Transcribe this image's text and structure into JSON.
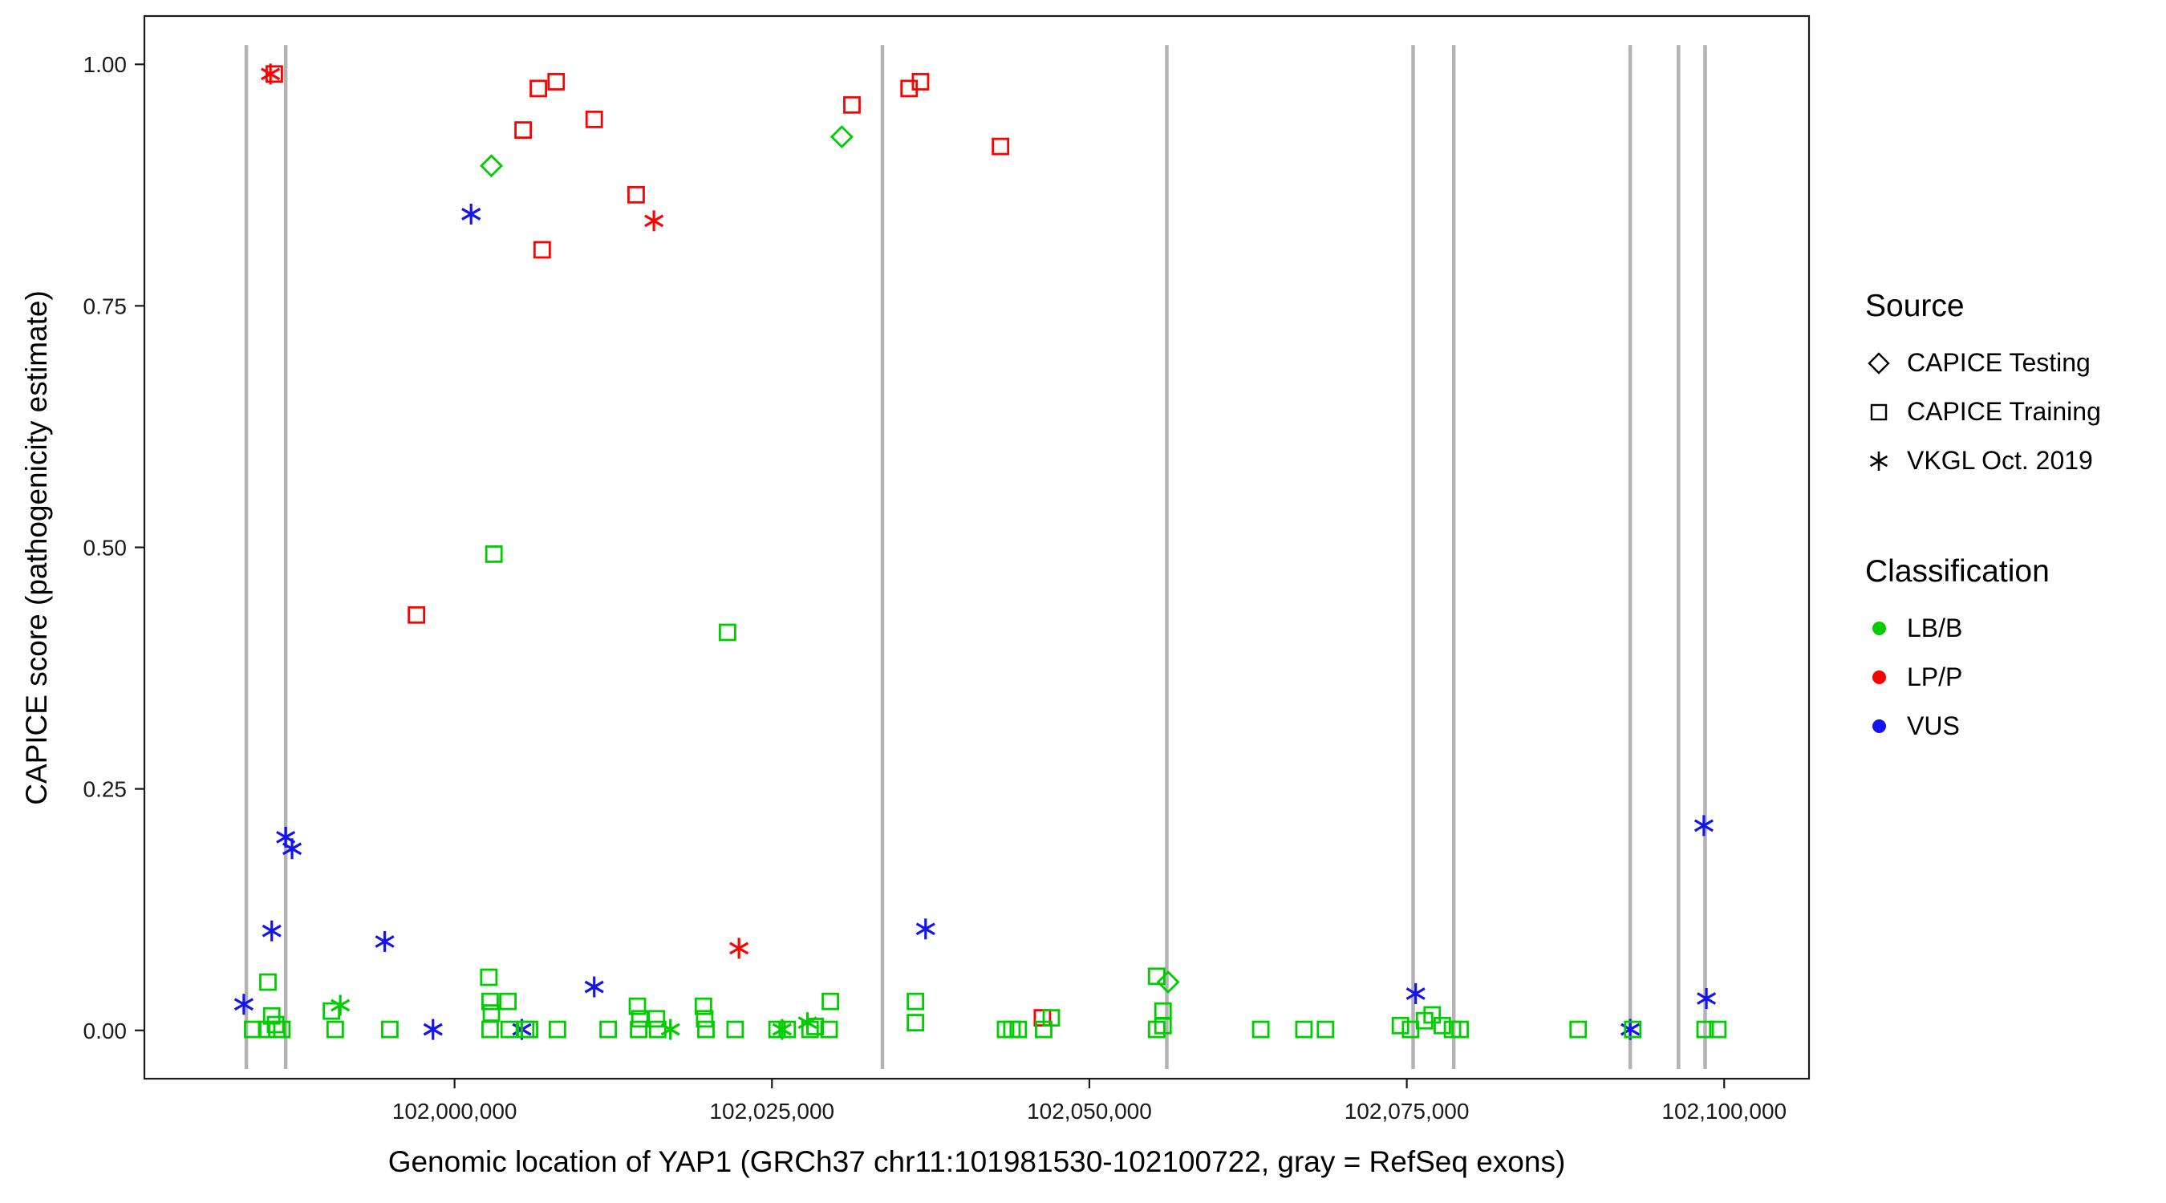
{
  "figure": {
    "y_axis_title": "CAPICE score (pathogenicity estimate)",
    "x_axis_title": "Genomic location of YAP1 (GRCh37 chr11:101981530-102100722, gray = RefSeq exons)"
  },
  "legend": {
    "source": {
      "title": "Source",
      "items": [
        {
          "label": "CAPICE Testing",
          "shape": "diamond"
        },
        {
          "label": "CAPICE Training",
          "shape": "square"
        },
        {
          "label": "VKGL Oct. 2019",
          "shape": "asterisk"
        }
      ]
    },
    "classification": {
      "title": "Classification",
      "items": [
        {
          "label": "LB/B",
          "color": "#00CD00"
        },
        {
          "label": "LP/P",
          "color": "#FF0000"
        },
        {
          "label": "VUS",
          "color": "#1414EE"
        }
      ]
    }
  },
  "chart_data": {
    "type": "scatter",
    "title": "",
    "xlabel": "Genomic location of YAP1 (GRCh37 chr11:101981530-102100722, gray = RefSeq exons)",
    "ylabel": "CAPICE score (pathogenicity estimate)",
    "xlim": [
      101975570,
      102106682
    ],
    "ylim": [
      -0.05,
      1.05
    ],
    "x_ticks": [
      {
        "value": 102000000,
        "label": "102,000,000"
      },
      {
        "value": 102025000,
        "label": "102,025,000"
      },
      {
        "value": 102050000,
        "label": "102,050,000"
      },
      {
        "value": 102075000,
        "label": "102,075,000"
      },
      {
        "value": 102100000,
        "label": "102,100,000"
      }
    ],
    "y_ticks": [
      {
        "value": 0.0,
        "label": "0.00"
      },
      {
        "value": 0.25,
        "label": "0.25"
      },
      {
        "value": 0.5,
        "label": "0.50"
      },
      {
        "value": 0.75,
        "label": "0.75"
      },
      {
        "value": 1.0,
        "label": "1.00"
      }
    ],
    "exon_lines": [
      101983600,
      101986700,
      102033700,
      102056100,
      102075500,
      102078700,
      102092600,
      102096400,
      102098500
    ],
    "colors": {
      "LB/B": "#00CD00",
      "LP/P": "#FF0000",
      "VUS": "#1414EE",
      "exon": "#B3B3B3"
    },
    "points": [
      [
        101985800,
        0.99,
        "LP/P",
        "square"
      ],
      [
        101985500,
        0.99,
        "LP/P",
        "asterisk"
      ],
      [
        101997000,
        0.43,
        "LP/P",
        "square"
      ],
      [
        102005400,
        0.932,
        "LP/P",
        "square"
      ],
      [
        102006600,
        0.975,
        "LP/P",
        "square"
      ],
      [
        102008000,
        0.982,
        "LP/P",
        "square"
      ],
      [
        102006900,
        0.808,
        "LP/P",
        "square"
      ],
      [
        102011000,
        0.943,
        "LP/P",
        "square"
      ],
      [
        102014300,
        0.865,
        "LP/P",
        "square"
      ],
      [
        102015700,
        0.838,
        "LP/P",
        "asterisk"
      ],
      [
        102022400,
        0.085,
        "LP/P",
        "asterisk"
      ],
      [
        102031300,
        0.958,
        "LP/P",
        "square"
      ],
      [
        102035800,
        0.975,
        "LP/P",
        "square"
      ],
      [
        102036700,
        0.982,
        "LP/P",
        "square"
      ],
      [
        102043000,
        0.915,
        "LP/P",
        "square"
      ],
      [
        102046300,
        0.013,
        "LP/P",
        "square"
      ],
      [
        102002900,
        0.895,
        "LB/B",
        "diamond"
      ],
      [
        102030500,
        0.925,
        "LB/B",
        "diamond"
      ],
      [
        102056200,
        0.05,
        "LB/B",
        "diamond"
      ],
      [
        102003100,
        0.493,
        "LB/B",
        "square"
      ],
      [
        102021500,
        0.412,
        "LB/B",
        "square"
      ],
      [
        102001300,
        0.845,
        "VUS",
        "asterisk"
      ],
      [
        101983400,
        0.027,
        "VUS",
        "asterisk"
      ],
      [
        101985600,
        0.103,
        "VUS",
        "asterisk"
      ],
      [
        101986700,
        0.2,
        "VUS",
        "asterisk"
      ],
      [
        101987200,
        0.188,
        "VUS",
        "asterisk"
      ],
      [
        101994500,
        0.092,
        "VUS",
        "asterisk"
      ],
      [
        101998300,
        0.001,
        "VUS",
        "asterisk"
      ],
      [
        102005300,
        0.001,
        "VUS",
        "asterisk"
      ],
      [
        102011000,
        0.045,
        "VUS",
        "asterisk"
      ],
      [
        102037100,
        0.105,
        "VUS",
        "asterisk"
      ],
      [
        102075700,
        0.038,
        "VUS",
        "asterisk"
      ],
      [
        102092600,
        0.001,
        "VUS",
        "asterisk"
      ],
      [
        102098400,
        0.212,
        "VUS",
        "asterisk"
      ],
      [
        102098600,
        0.033,
        "VUS",
        "asterisk"
      ],
      [
        101984100,
        0.001,
        "LB/B",
        "square"
      ],
      [
        101985200,
        0.001,
        "LB/B",
        "square"
      ],
      [
        101985300,
        0.05,
        "LB/B",
        "square"
      ],
      [
        101985600,
        0.015,
        "LB/B",
        "square"
      ],
      [
        101985900,
        0.006,
        "LB/B",
        "square"
      ],
      [
        101986000,
        0.001,
        "LB/B",
        "square"
      ],
      [
        101986400,
        0.001,
        "LB/B",
        "square"
      ],
      [
        101990300,
        0.02,
        "LB/B",
        "square"
      ],
      [
        101990600,
        0.001,
        "LB/B",
        "square"
      ],
      [
        101991000,
        0.026,
        "LB/B",
        "asterisk"
      ],
      [
        101994900,
        0.001,
        "LB/B",
        "square"
      ],
      [
        102002700,
        0.055,
        "LB/B",
        "square"
      ],
      [
        102002800,
        0.03,
        "LB/B",
        "square"
      ],
      [
        102002900,
        0.018,
        "LB/B",
        "square"
      ],
      [
        102002800,
        0.001,
        "LB/B",
        "square"
      ],
      [
        102004200,
        0.03,
        "LB/B",
        "square"
      ],
      [
        102004300,
        0.001,
        "LB/B",
        "square"
      ],
      [
        102005600,
        0.001,
        "LB/B",
        "square"
      ],
      [
        102005900,
        0.001,
        "LB/B",
        "square"
      ],
      [
        102008100,
        0.001,
        "LB/B",
        "square"
      ],
      [
        102012100,
        0.001,
        "LB/B",
        "square"
      ],
      [
        102014400,
        0.025,
        "LB/B",
        "square"
      ],
      [
        102014600,
        0.012,
        "LB/B",
        "square"
      ],
      [
        102014500,
        0.001,
        "LB/B",
        "square"
      ],
      [
        102015900,
        0.012,
        "LB/B",
        "square"
      ],
      [
        102016000,
        0.001,
        "LB/B",
        "square"
      ],
      [
        102017000,
        0.001,
        "LB/B",
        "asterisk"
      ],
      [
        102019600,
        0.025,
        "LB/B",
        "square"
      ],
      [
        102019700,
        0.012,
        "LB/B",
        "square"
      ],
      [
        102019800,
        0.001,
        "LB/B",
        "square"
      ],
      [
        102022100,
        0.001,
        "LB/B",
        "square"
      ],
      [
        102025400,
        0.001,
        "LB/B",
        "square"
      ],
      [
        102025800,
        0.001,
        "LB/B",
        "asterisk"
      ],
      [
        102026200,
        0.001,
        "LB/B",
        "square"
      ],
      [
        102027800,
        0.008,
        "LB/B",
        "asterisk"
      ],
      [
        102028000,
        0.001,
        "LB/B",
        "square"
      ],
      [
        102028400,
        0.004,
        "LB/B",
        "square"
      ],
      [
        102029600,
        0.03,
        "LB/B",
        "square"
      ],
      [
        102029500,
        0.001,
        "LB/B",
        "square"
      ],
      [
        102036300,
        0.03,
        "LB/B",
        "square"
      ],
      [
        102036300,
        0.008,
        "LB/B",
        "square"
      ],
      [
        102043400,
        0.001,
        "LB/B",
        "square"
      ],
      [
        102043900,
        0.001,
        "LB/B",
        "square"
      ],
      [
        102044400,
        0.001,
        "LB/B",
        "square"
      ],
      [
        102046400,
        0.001,
        "LB/B",
        "square"
      ],
      [
        102047000,
        0.013,
        "LB/B",
        "square"
      ],
      [
        102055300,
        0.056,
        "LB/B",
        "square"
      ],
      [
        102055800,
        0.02,
        "LB/B",
        "square"
      ],
      [
        102055800,
        0.005,
        "LB/B",
        "square"
      ],
      [
        102055300,
        0.001,
        "LB/B",
        "square"
      ],
      [
        102063500,
        0.001,
        "LB/B",
        "square"
      ],
      [
        102066900,
        0.001,
        "LB/B",
        "square"
      ],
      [
        102068600,
        0.001,
        "LB/B",
        "square"
      ],
      [
        102074500,
        0.005,
        "LB/B",
        "square"
      ],
      [
        102075300,
        0.001,
        "LB/B",
        "square"
      ],
      [
        102076400,
        0.01,
        "LB/B",
        "square"
      ],
      [
        102077000,
        0.016,
        "LB/B",
        "square"
      ],
      [
        102077800,
        0.005,
        "LB/B",
        "square"
      ],
      [
        102078600,
        0.001,
        "LB/B",
        "square"
      ],
      [
        102079200,
        0.001,
        "LB/B",
        "square"
      ],
      [
        102088500,
        0.001,
        "LB/B",
        "square"
      ],
      [
        102092800,
        0.001,
        "LB/B",
        "square"
      ],
      [
        102098500,
        0.001,
        "LB/B",
        "square"
      ],
      [
        102099500,
        0.001,
        "LB/B",
        "square"
      ]
    ]
  }
}
